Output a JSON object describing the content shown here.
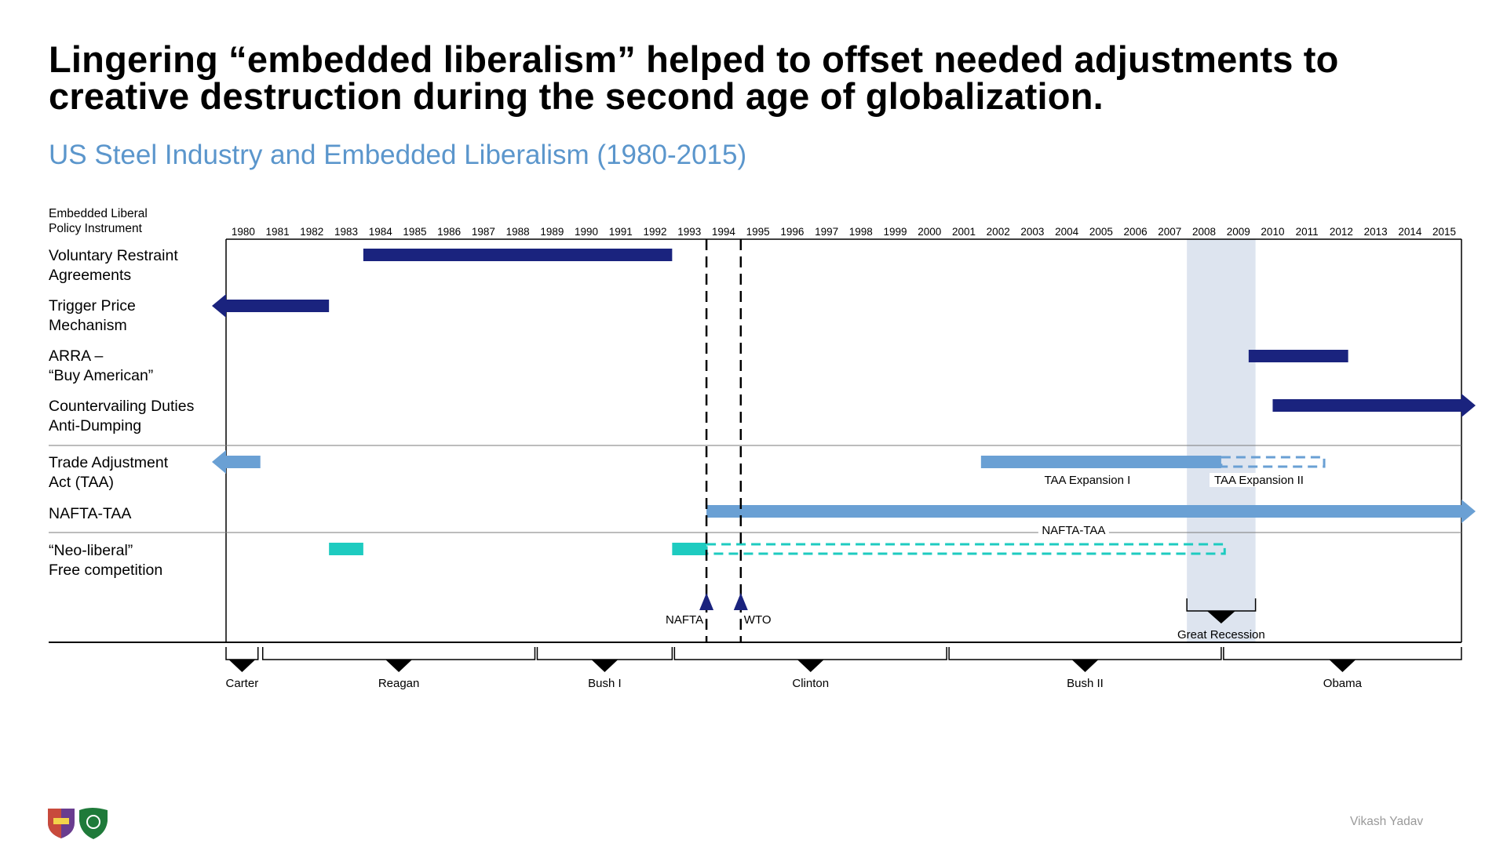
{
  "title": "Lingering “embedded liberalism” helped to offset needed adjustments to creative destruction during the second age of globalization.",
  "subtitle": "US Steel Industry and Embedded Liberalism (1980-2015)",
  "column_header_line1": "Embedded Liberal",
  "column_header_line2": "Policy Instrument",
  "rows": [
    {
      "line1": "Voluntary Restraint",
      "line2": "Agreements"
    },
    {
      "line1": "Trigger Price",
      "line2": "Mechanism"
    },
    {
      "line1": "ARRA –",
      "line2": "“Buy American”"
    },
    {
      "line1": "Countervailing Duties",
      "line2": "Anti-Dumping"
    },
    {
      "line1": "Trade Adjustment",
      "line2": "Act (TAA)"
    },
    {
      "line1": "NAFTA-TAA",
      "line2": ""
    },
    {
      "line1": "“Neo-liberal”",
      "line2": "Free competition"
    }
  ],
  "years": [
    "1980",
    "1981",
    "1982",
    "1983",
    "1984",
    "1985",
    "1986",
    "1987",
    "1988",
    "1989",
    "1990",
    "1991",
    "1992",
    "1993",
    "1994",
    "1995",
    "1996",
    "1997",
    "1998",
    "1999",
    "2000",
    "2001",
    "2002",
    "2003",
    "2004",
    "2005",
    "2006",
    "2007",
    "2008",
    "2009",
    "2010",
    "2011",
    "2012",
    "2013",
    "2014",
    "2015"
  ],
  "colors": {
    "dark_navy": "#1a237e",
    "light_blue": "#6aa0d4",
    "teal": "#1ecbc0",
    "recession": "#dde4ef",
    "subtitle": "#5b96cc"
  },
  "chart_data": {
    "type": "timeline",
    "x_range": [
      1980,
      2016
    ],
    "bars": [
      {
        "row": 0,
        "start": 1984,
        "end": 1993,
        "color": "dark_navy",
        "style": "solid"
      },
      {
        "row": 1,
        "start": 1980,
        "end": 1983,
        "color": "dark_navy",
        "style": "solid",
        "arrow_left": true
      },
      {
        "row": 2,
        "start": 2009.8,
        "end": 2012.7,
        "color": "dark_navy",
        "style": "solid"
      },
      {
        "row": 3,
        "start": 2010.5,
        "end": 2016,
        "color": "dark_navy",
        "style": "solid",
        "arrow_right": true
      },
      {
        "row": 4,
        "start": 1980,
        "end": 1981,
        "color": "light_blue",
        "style": "solid",
        "arrow_left": true
      },
      {
        "row": 4,
        "start": 2002,
        "end": 2009,
        "color": "light_blue",
        "style": "solid"
      },
      {
        "row": 4,
        "start": 2009,
        "end": 2012,
        "color": "light_blue",
        "style": "dashed"
      },
      {
        "row": 5,
        "start": 1994,
        "end": 2016,
        "color": "light_blue",
        "style": "solid",
        "arrow_right": true
      },
      {
        "row": 6,
        "start": 1983,
        "end": 1984,
        "color": "teal",
        "style": "solid"
      },
      {
        "row": 6,
        "start": 1993,
        "end": 1994,
        "color": "teal",
        "style": "solid"
      },
      {
        "row": 6,
        "start": 1994,
        "end": 2009.1,
        "color": "teal",
        "style": "dashed"
      }
    ],
    "bar_labels": {
      "taa_expansion_1": "TAA Expansion I",
      "taa_expansion_2": "TAA Expansion II",
      "nafta_taa": "NAFTA-TAA"
    },
    "events": [
      {
        "year": 1994,
        "label": "NAFTA"
      },
      {
        "year": 1995,
        "label": "WTO"
      }
    ],
    "recession": {
      "start": 2008,
      "end": 2010,
      "label": "Great Recession"
    },
    "presidents": [
      {
        "name": "Carter",
        "start": 1980,
        "end": 1981
      },
      {
        "name": "Reagan",
        "start": 1981,
        "end": 1989
      },
      {
        "name": "Bush I",
        "start": 1989,
        "end": 1993
      },
      {
        "name": "Clinton",
        "start": 1993,
        "end": 2001
      },
      {
        "name": "Bush II",
        "start": 2001,
        "end": 2009
      },
      {
        "name": "Obama",
        "start": 2009,
        "end": 2016
      }
    ]
  },
  "author": "Vikash Yadav"
}
